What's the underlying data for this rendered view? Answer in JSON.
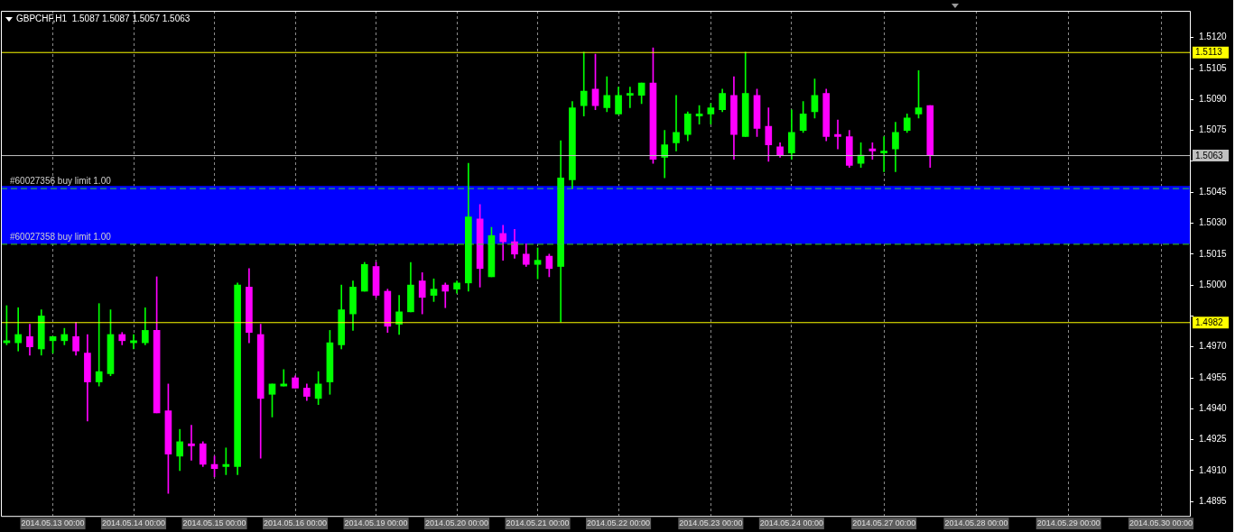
{
  "chart_data": {
    "type": "candlestick",
    "title": "GBPCHF,H1  1.5087 1.5087 1.5057 1.5063",
    "categories": [
      null,
      null,
      null,
      null,
      "2014.05.13 00:00",
      null,
      null,
      null,
      null,
      null,
      null,
      "2014.05.14 00:00",
      null,
      null,
      null,
      null,
      null,
      null,
      "2014.05.15 00:00",
      null,
      null,
      null,
      null,
      null,
      null,
      "2014.05.16 00:00",
      null,
      null,
      null,
      null,
      null,
      null,
      "2014.05.19 00:00",
      null,
      null,
      null,
      null,
      null,
      null,
      "2014.05.20 00:00",
      null,
      null,
      null,
      null,
      null,
      null,
      "2014.05.21 00:00",
      null,
      null,
      null,
      null,
      null,
      null,
      "2014.05.22 00:00",
      null,
      null,
      null,
      null,
      null,
      null,
      null,
      "2014.05.23 00:00",
      null,
      null,
      null,
      null,
      null,
      null,
      "2014.05.24 00:00",
      null,
      null,
      null,
      null,
      null,
      null,
      null,
      "2014.05.27 00:00",
      null,
      null,
      null,
      null,
      null,
      null,
      null,
      "2014.05.28 00:00",
      null,
      null,
      null,
      null,
      null,
      null,
      null,
      "2014.05.29 00:00",
      null,
      null,
      null,
      null,
      null,
      null,
      null,
      "2014.05.30 00:00",
      null,
      null
    ],
    "ohlc": [
      [
        1.4972,
        1.499,
        1.4971,
        1.4973
      ],
      [
        1.4972,
        1.4989,
        1.4968,
        1.4976
      ],
      [
        1.4975,
        1.4981,
        1.4966,
        1.497
      ],
      [
        1.4969,
        1.4988,
        1.4966,
        1.4985
      ],
      [
        1.4973,
        1.4975,
        1.4967,
        1.4975
      ],
      [
        1.4973,
        1.4979,
        1.4971,
        1.4976
      ],
      [
        1.4975,
        1.4982,
        1.4966,
        1.4968
      ],
      [
        1.4967,
        1.4976,
        1.4934,
        1.4953
      ],
      [
        1.4953,
        1.4991,
        1.4951,
        1.4958
      ],
      [
        1.4957,
        1.4988,
        1.4956,
        1.4976
      ],
      [
        1.4976,
        1.4977,
        1.4971,
        1.4973
      ],
      [
        1.4972,
        1.4976,
        1.4969,
        1.4973
      ],
      [
        1.4972,
        1.4989,
        1.4971,
        1.4978
      ],
      [
        1.4978,
        1.5004,
        1.4938,
        1.4938
      ],
      [
        1.4939,
        1.4952,
        1.4899,
        1.4918
      ],
      [
        1.4917,
        1.493,
        1.491,
        1.4924
      ],
      [
        1.4923,
        1.4932,
        1.4915,
        1.4922
      ],
      [
        1.4923,
        1.4924,
        1.4912,
        1.4913
      ],
      [
        1.4913,
        1.4917,
        1.4907,
        1.4911
      ],
      [
        1.4912,
        1.4921,
        1.4908,
        1.4913
      ],
      [
        1.4912,
        1.5001,
        1.4908,
        1.5
      ],
      [
        1.4999,
        1.5008,
        1.4972,
        1.4977
      ],
      [
        1.4976,
        1.4981,
        1.4916,
        1.4945
      ],
      [
        1.4947,
        1.4952,
        1.4936,
        1.4952
      ],
      [
        1.4951,
        1.4959,
        1.4951,
        1.4952
      ],
      [
        1.4955,
        1.4956,
        1.495,
        1.495
      ],
      [
        1.495,
        1.4952,
        1.4944,
        1.4946
      ],
      [
        1.4945,
        1.4958,
        1.4942,
        1.4952
      ],
      [
        1.4953,
        1.4978,
        1.4947,
        1.4972
      ],
      [
        1.4971,
        1.5,
        1.4969,
        1.4988
      ],
      [
        1.4986,
        1.5002,
        1.4978,
        1.4999
      ],
      [
        1.4997,
        1.5011,
        1.4997,
        1.501
      ],
      [
        1.5009,
        1.5011,
        1.4994,
        1.4995
      ],
      [
        1.4997,
        1.4998,
        1.4977,
        1.498
      ],
      [
        1.4981,
        1.4995,
        1.4976,
        1.4987
      ],
      [
        1.4987,
        1.5011,
        1.4987,
        1.5
      ],
      [
        1.5002,
        1.5006,
        1.4986,
        1.4994
      ],
      [
        1.4995,
        1.5003,
        1.4992,
        1.4998
      ],
      [
        1.5,
        1.5001,
        1.4989,
        1.4997
      ],
      [
        1.4998,
        1.5002,
        1.4996,
        1.5001
      ],
      [
        1.5001,
        1.5059,
        1.4997,
        1.5033
      ],
      [
        1.5032,
        1.5039,
        1.4999,
        1.5008
      ],
      [
        1.5004,
        1.5028,
        1.5004,
        1.5024
      ],
      [
        1.5025,
        1.5029,
        1.5012,
        1.5021
      ],
      [
        1.5021,
        1.5027,
        1.5013,
        1.5015
      ],
      [
        1.5015,
        1.502,
        1.5009,
        1.501
      ],
      [
        1.501,
        1.5018,
        1.5003,
        1.5012
      ],
      [
        1.5014,
        1.5015,
        1.5004,
        1.5008
      ],
      [
        1.5009,
        1.507,
        1.4982,
        1.5052
      ],
      [
        1.5051,
        1.5089,
        1.5047,
        1.5086
      ],
      [
        1.5087,
        1.5113,
        1.5082,
        1.5094
      ],
      [
        1.5095,
        1.5112,
        1.5085,
        1.5087
      ],
      [
        1.5086,
        1.5101,
        1.5084,
        1.5092
      ],
      [
        1.5083,
        1.5096,
        1.5083,
        1.5092
      ],
      [
        1.5092,
        1.5096,
        1.5086,
        1.5093
      ],
      [
        1.5092,
        1.5098,
        1.5088,
        1.5098
      ],
      [
        1.5098,
        1.5115,
        1.5059,
        1.5061
      ],
      [
        1.5062,
        1.5075,
        1.5052,
        1.5068
      ],
      [
        1.5069,
        1.5092,
        1.5065,
        1.5074
      ],
      [
        1.5073,
        1.5084,
        1.507,
        1.5083
      ],
      [
        1.5082,
        1.5087,
        1.5078,
        1.5083
      ],
      [
        1.5083,
        1.5088,
        1.5078,
        1.5086
      ],
      [
        1.5085,
        1.5095,
        1.5084,
        1.5093
      ],
      [
        1.5092,
        1.5101,
        1.5061,
        1.5073
      ],
      [
        1.5072,
        1.5113,
        1.5072,
        1.5093
      ],
      [
        1.5092,
        1.5095,
        1.5072,
        1.5076
      ],
      [
        1.5077,
        1.5086,
        1.506,
        1.5068
      ],
      [
        1.5067,
        1.5069,
        1.5062,
        1.5063
      ],
      [
        1.5064,
        1.5085,
        1.5061,
        1.5074
      ],
      [
        1.5075,
        1.5089,
        1.5074,
        1.5083
      ],
      [
        1.5084,
        1.51,
        1.5081,
        1.5092
      ],
      [
        1.5093,
        1.5095,
        1.507,
        1.5072
      ],
      [
        1.5073,
        1.508,
        1.5066,
        1.5072
      ],
      [
        1.5072,
        1.5075,
        1.5057,
        1.5058
      ],
      [
        1.5059,
        1.5069,
        1.5057,
        1.5063
      ],
      [
        1.5066,
        1.5069,
        1.5061,
        1.5065
      ],
      [
        1.5064,
        1.5072,
        1.5055,
        1.5065
      ],
      [
        1.5066,
        1.5079,
        1.5055,
        1.5074
      ],
      [
        1.5075,
        1.5083,
        1.5074,
        1.5081
      ],
      [
        1.5083,
        1.5104,
        1.5081,
        1.5086
      ],
      [
        1.5087,
        1.5087,
        1.5057,
        1.5063
      ],
      null,
      null,
      null,
      null,
      null,
      null,
      null,
      null,
      null,
      null,
      null,
      null,
      null,
      null,
      null,
      null,
      null,
      null,
      null,
      null,
      null,
      null
    ],
    "colors": [
      "#00ff00",
      "#00ff00",
      "#ff00ff",
      "#00ff00",
      "#00ff00",
      "#00ff00",
      "#ff00ff",
      "#ff00ff",
      "#00ff00",
      "#00ff00",
      "#ff00ff",
      "#00ff00",
      "#00ff00",
      "#ff00ff",
      "#ff00ff",
      "#00ff00",
      "#ff00ff",
      "#ff00ff",
      "#ff00ff",
      "#00ff00",
      "#00ff00",
      "#ff00ff",
      "#ff00ff",
      "#00ff00",
      "#00ff00",
      "#ff00ff",
      "#ff00ff",
      "#00ff00",
      "#00ff00",
      "#00ff00",
      "#00ff00",
      "#00ff00",
      "#ff00ff",
      "#ff00ff",
      "#00ff00",
      "#00ff00",
      "#ff00ff",
      "#00ff00",
      "#ff00ff",
      "#00ff00",
      "#00ff00",
      "#ff00ff",
      "#00ff00",
      "#ff00ff",
      "#ff00ff",
      "#ff00ff",
      "#00ff00",
      "#ff00ff",
      "#00ff00",
      "#00ff00",
      "#00ff00",
      "#ff00ff",
      "#00ff00",
      "#00ff00",
      "#00ff00",
      "#00ff00",
      "#ff00ff",
      "#00ff00",
      "#00ff00",
      "#00ff00",
      "#00ff00",
      "#00ff00",
      "#00ff00",
      "#ff00ff",
      "#00ff00",
      "#ff00ff",
      "#ff00ff",
      "#ff00ff",
      "#00ff00",
      "#00ff00",
      "#00ff00",
      "#ff00ff",
      "#ff00ff",
      "#ff00ff",
      "#00ff00",
      "#ff00ff",
      "#00ff00",
      "#00ff00",
      "#00ff00",
      "#00ff00",
      "#ff00ff",
      null,
      null,
      null,
      null,
      null,
      null,
      null,
      null,
      null,
      null,
      null,
      null,
      null,
      null,
      null,
      null,
      null,
      null,
      null,
      null,
      null,
      null
    ],
    "ylim": [
      1.4888,
      1.5133
    ],
    "yticks": [
      {
        "value": 1.512,
        "label": "1.5120"
      },
      {
        "value": 1.5105,
        "label": "1.5105"
      },
      {
        "value": 1.509,
        "label": "1.5090"
      },
      {
        "value": 1.5075,
        "label": "1.5075"
      },
      {
        "value": 1.506,
        "label": null
      },
      {
        "value": 1.5045,
        "label": "1.5045"
      },
      {
        "value": 1.503,
        "label": "1.5030"
      },
      {
        "value": 1.5015,
        "label": "1.5015"
      },
      {
        "value": 1.5,
        "label": "1.5000"
      },
      {
        "value": 1.4985,
        "label": null
      },
      {
        "value": 1.497,
        "label": "1.4970"
      },
      {
        "value": 1.4955,
        "label": "1.4955"
      },
      {
        "value": 1.494,
        "label": "1.4940"
      },
      {
        "value": 1.4925,
        "label": "1.4925"
      },
      {
        "value": 1.491,
        "label": "1.4910"
      },
      {
        "value": 1.4895,
        "label": "1.4895"
      }
    ],
    "grid": "x",
    "bands": [
      {
        "axis": "y",
        "from": 1.502,
        "to": 1.5048,
        "color": "#0000ff"
      }
    ],
    "ref_lines": [
      {
        "axis": "y",
        "value": 1.5113,
        "label": "1.5113",
        "color": "#ffff00",
        "line_style": "solid"
      },
      {
        "axis": "y",
        "value": 1.5063,
        "label": "1.5063",
        "color": "#c0c0c0",
        "line_style": "solid"
      },
      {
        "axis": "y",
        "value": 1.4982,
        "label": "1.4982",
        "color": "#ffff00",
        "line_style": "solid"
      },
      {
        "axis": "y",
        "value": 1.5047,
        "label": "#60027356 buy limit 1.00",
        "color": "#32cd32",
        "line_style": "dashed"
      },
      {
        "axis": "y",
        "value": 1.502,
        "label": "#60027358 buy limit 1.00",
        "color": "#32cd32",
        "line_style": "dashed"
      }
    ]
  }
}
